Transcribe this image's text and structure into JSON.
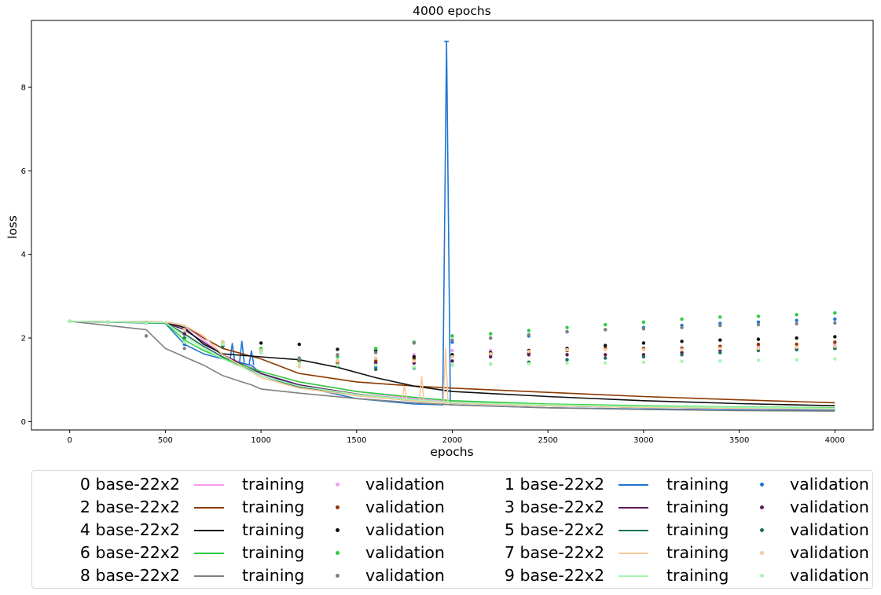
{
  "chart_data": {
    "type": "line",
    "title": "4000 epochs",
    "xlabel": "epochs",
    "ylabel": "loss",
    "xlim": [
      -200,
      4200
    ],
    "ylim": [
      -0.2,
      9.6
    ],
    "xticks": [
      0,
      500,
      1000,
      1500,
      2000,
      2500,
      3000,
      3500,
      4000
    ],
    "yticks": [
      0,
      2,
      4,
      6,
      8
    ],
    "grid": false,
    "legend_placement": "below",
    "val_epochs": [
      0,
      200,
      400,
      600,
      800,
      1000,
      1200,
      1400,
      1600,
      1800,
      2000,
      2200,
      2400,
      2600,
      2800,
      3000,
      3200,
      3400,
      3600,
      3800,
      4000
    ],
    "series": [
      {
        "name": "0 base-22x2",
        "color": "#f59cf5",
        "training": [
          [
            0,
            2.4
          ],
          [
            500,
            2.38
          ],
          [
            600,
            2.3
          ],
          [
            700,
            1.95
          ],
          [
            800,
            1.6
          ],
          [
            1000,
            1.2
          ],
          [
            1200,
            0.95
          ],
          [
            1500,
            0.72
          ],
          [
            1800,
            0.55
          ],
          [
            2000,
            0.47
          ],
          [
            2500,
            0.4
          ],
          [
            3000,
            0.36
          ],
          [
            3500,
            0.33
          ],
          [
            4000,
            0.31
          ]
        ],
        "validation": [
          2.4,
          2.38,
          2.36,
          2.0,
          1.8,
          1.65,
          1.5,
          1.55,
          1.5,
          1.6,
          1.7,
          1.7,
          1.7,
          1.72,
          1.75,
          1.75,
          1.77,
          1.8,
          1.8,
          1.85,
          1.85
        ]
      },
      {
        "name": "1 base-22x2",
        "color": "#1f77d4",
        "training": [
          [
            0,
            2.4
          ],
          [
            500,
            2.35
          ],
          [
            600,
            1.85
          ],
          [
            700,
            1.62
          ],
          [
            800,
            1.5
          ],
          [
            850,
            1.45
          ],
          [
            900,
            1.4
          ],
          [
            950,
            1.35
          ],
          [
            1000,
            1.15
          ],
          [
            1200,
            0.85
          ],
          [
            1500,
            0.55
          ],
          [
            1800,
            0.42
          ],
          [
            1950,
            0.4
          ],
          [
            1970,
            9.1
          ],
          [
            1990,
            0.4
          ],
          [
            2500,
            0.33
          ],
          [
            3000,
            0.3
          ],
          [
            3500,
            0.28
          ],
          [
            4000,
            0.27
          ]
        ],
        "spikes": [
          [
            850,
            1.88
          ],
          [
            900,
            1.93
          ],
          [
            950,
            1.7
          ],
          [
            1970,
            9.1
          ]
        ],
        "validation": [
          2.4,
          2.38,
          2.36,
          1.85,
          1.8,
          1.7,
          1.45,
          1.35,
          1.3,
          1.3,
          1.9,
          2.0,
          2.05,
          2.15,
          2.2,
          2.25,
          2.3,
          2.35,
          2.38,
          2.42,
          2.45
        ]
      },
      {
        "name": "2 base-22x2",
        "color": "#8b3a00",
        "training": [
          [
            0,
            2.4
          ],
          [
            500,
            2.38
          ],
          [
            600,
            2.3
          ],
          [
            700,
            2.0
          ],
          [
            800,
            1.75
          ],
          [
            1000,
            1.5
          ],
          [
            1200,
            1.15
          ],
          [
            1500,
            0.95
          ],
          [
            1800,
            0.85
          ],
          [
            2000,
            0.8
          ],
          [
            2500,
            0.7
          ],
          [
            3000,
            0.6
          ],
          [
            3500,
            0.52
          ],
          [
            4000,
            0.45
          ]
        ],
        "validation": [
          2.4,
          2.38,
          2.37,
          2.1,
          1.9,
          1.7,
          1.45,
          1.4,
          1.45,
          1.5,
          1.55,
          1.6,
          1.65,
          1.7,
          1.75,
          1.75,
          1.75,
          1.8,
          1.85,
          1.85,
          1.9
        ]
      },
      {
        "name": "3 base-22x2",
        "color": "#5c1a5c",
        "training": [
          [
            0,
            2.4
          ],
          [
            500,
            2.36
          ],
          [
            600,
            2.2
          ],
          [
            700,
            1.9
          ],
          [
            800,
            1.6
          ],
          [
            1000,
            1.15
          ],
          [
            1200,
            0.88
          ],
          [
            1500,
            0.66
          ],
          [
            1800,
            0.52
          ],
          [
            2000,
            0.45
          ],
          [
            2500,
            0.38
          ],
          [
            3000,
            0.34
          ],
          [
            3500,
            0.32
          ],
          [
            4000,
            0.3
          ]
        ],
        "validation": [
          2.4,
          2.38,
          2.36,
          2.1,
          1.85,
          1.7,
          1.5,
          1.45,
          1.4,
          1.4,
          1.45,
          1.55,
          1.6,
          1.6,
          1.6,
          1.6,
          1.65,
          1.7,
          1.72,
          1.75,
          1.78
        ]
      },
      {
        "name": "4 base-22x2",
        "color": "#111111",
        "training": [
          [
            0,
            2.4
          ],
          [
            500,
            2.38
          ],
          [
            600,
            2.25
          ],
          [
            700,
            1.85
          ],
          [
            800,
            1.62
          ],
          [
            1000,
            1.55
          ],
          [
            1200,
            1.48
          ],
          [
            1400,
            1.3
          ],
          [
            1600,
            1.05
          ],
          [
            1800,
            0.85
          ],
          [
            2000,
            0.72
          ],
          [
            2500,
            0.6
          ],
          [
            3000,
            0.5
          ],
          [
            3500,
            0.43
          ],
          [
            4000,
            0.38
          ]
        ],
        "validation": [
          2.4,
          2.38,
          2.36,
          2.2,
          1.9,
          1.88,
          1.85,
          1.73,
          1.7,
          1.55,
          1.6,
          1.65,
          1.7,
          1.75,
          1.82,
          1.88,
          1.92,
          1.95,
          1.97,
          2.0,
          2.03
        ]
      },
      {
        "name": "5 base-22x2",
        "color": "#1e6e5a",
        "training": [
          [
            0,
            2.4
          ],
          [
            500,
            2.37
          ],
          [
            600,
            2.1
          ],
          [
            700,
            1.8
          ],
          [
            800,
            1.55
          ],
          [
            1000,
            1.1
          ],
          [
            1200,
            0.82
          ],
          [
            1500,
            0.62
          ],
          [
            1800,
            0.5
          ],
          [
            2000,
            0.44
          ],
          [
            2500,
            0.38
          ],
          [
            3000,
            0.34
          ],
          [
            3500,
            0.32
          ],
          [
            4000,
            0.3
          ]
        ],
        "validation": [
          2.4,
          2.38,
          2.36,
          2.0,
          1.8,
          1.7,
          1.5,
          1.32,
          1.25,
          1.28,
          1.35,
          1.38,
          1.42,
          1.48,
          1.52,
          1.55,
          1.6,
          1.65,
          1.7,
          1.72,
          1.75
        ]
      },
      {
        "name": "6 base-22x2",
        "color": "#2ecc40",
        "training": [
          [
            0,
            2.4
          ],
          [
            500,
            2.36
          ],
          [
            600,
            1.95
          ],
          [
            700,
            1.7
          ],
          [
            800,
            1.52
          ],
          [
            1000,
            1.2
          ],
          [
            1200,
            0.95
          ],
          [
            1500,
            0.72
          ],
          [
            1800,
            0.58
          ],
          [
            2000,
            0.5
          ],
          [
            2500,
            0.42
          ],
          [
            3000,
            0.38
          ],
          [
            3500,
            0.35
          ],
          [
            4000,
            0.33
          ]
        ],
        "validation": [
          2.4,
          2.38,
          2.37,
          1.95,
          1.9,
          1.75,
          1.5,
          1.55,
          1.75,
          1.9,
          2.05,
          2.1,
          2.18,
          2.25,
          2.32,
          2.38,
          2.45,
          2.5,
          2.52,
          2.56,
          2.6
        ]
      },
      {
        "name": "7 base-22x2",
        "color": "#f7c99b",
        "training": [
          [
            0,
            2.4
          ],
          [
            500,
            2.38
          ],
          [
            600,
            2.3
          ],
          [
            700,
            2.05
          ],
          [
            800,
            1.6
          ],
          [
            1000,
            1.05
          ],
          [
            1200,
            0.8
          ],
          [
            1500,
            0.62
          ],
          [
            1750,
            0.52
          ],
          [
            1800,
            0.5
          ],
          [
            1840,
            0.48
          ],
          [
            1960,
            0.45
          ],
          [
            2000,
            0.44
          ],
          [
            2500,
            0.38
          ],
          [
            3000,
            0.34
          ],
          [
            3500,
            0.32
          ],
          [
            4000,
            0.3
          ]
        ],
        "spikes": [
          [
            1750,
            0.85
          ],
          [
            1840,
            1.08
          ],
          [
            1965,
            1.75
          ]
        ],
        "validation": [
          2.4,
          2.38,
          2.36,
          2.2,
          1.9,
          1.7,
          1.32,
          1.45,
          1.52,
          1.45,
          1.55,
          1.62,
          1.68,
          1.72,
          1.72,
          1.72,
          1.72,
          1.75,
          1.75,
          1.78,
          1.8
        ]
      },
      {
        "name": "8 base-22x2",
        "color": "#808080",
        "training": [
          [
            0,
            2.4
          ],
          [
            400,
            2.2
          ],
          [
            500,
            1.75
          ],
          [
            600,
            1.55
          ],
          [
            700,
            1.35
          ],
          [
            800,
            1.1
          ],
          [
            900,
            0.95
          ],
          [
            950,
            0.88
          ],
          [
            1000,
            0.78
          ],
          [
            1200,
            0.68
          ],
          [
            1500,
            0.55
          ],
          [
            1800,
            0.45
          ],
          [
            2000,
            0.4
          ],
          [
            2500,
            0.33
          ],
          [
            3000,
            0.29
          ],
          [
            3500,
            0.26
          ],
          [
            4000,
            0.25
          ]
        ],
        "validation": [
          2.4,
          2.38,
          2.05,
          1.75,
          1.85,
          1.65,
          1.52,
          1.6,
          1.65,
          1.88,
          1.95,
          2.0,
          2.08,
          2.15,
          2.2,
          2.22,
          2.25,
          2.3,
          2.32,
          2.34,
          2.36
        ]
      },
      {
        "name": "9 base-22x2",
        "color": "#a8f5b0",
        "training": [
          [
            0,
            2.4
          ],
          [
            500,
            2.37
          ],
          [
            600,
            2.05
          ],
          [
            700,
            1.75
          ],
          [
            800,
            1.5
          ],
          [
            1000,
            1.1
          ],
          [
            1200,
            0.85
          ],
          [
            1500,
            0.65
          ],
          [
            1800,
            0.52
          ],
          [
            2000,
            0.46
          ],
          [
            2500,
            0.4
          ],
          [
            3000,
            0.36
          ],
          [
            3500,
            0.34
          ],
          [
            4000,
            0.32
          ]
        ],
        "validation": [
          2.4,
          2.38,
          2.36,
          1.9,
          1.85,
          1.65,
          1.4,
          1.35,
          1.35,
          1.3,
          1.35,
          1.38,
          1.38,
          1.4,
          1.4,
          1.42,
          1.44,
          1.45,
          1.47,
          1.48,
          1.5
        ]
      }
    ],
    "legend_order": [
      0,
      2,
      4,
      6,
      8,
      1,
      3,
      5,
      7,
      9
    ],
    "legend_training_label": "training",
    "legend_validation_label": "validation"
  }
}
